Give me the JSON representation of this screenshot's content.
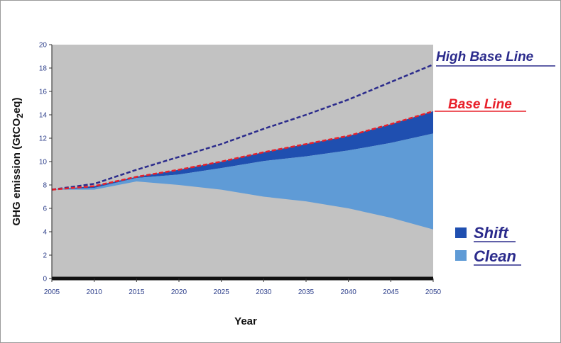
{
  "chart_data": {
    "type": "area",
    "xlabel": "Year",
    "ylabel_main": "GHG emission (GtCO",
    "ylabel_sub": "2",
    "ylabel_tail": "eq)",
    "xlim": [
      2005,
      2050
    ],
    "ylim": [
      0,
      20
    ],
    "x_ticks": [
      "2005",
      "2010",
      "2015",
      "2020",
      "2025",
      "2030",
      "2035",
      "2040",
      "2045",
      "2050"
    ],
    "y_ticks": [
      "0",
      "2",
      "4",
      "6",
      "8",
      "10",
      "12",
      "14",
      "16",
      "18",
      "20"
    ],
    "x": [
      2005,
      2010,
      2015,
      2020,
      2025,
      2030,
      2035,
      2040,
      2045,
      2050
    ],
    "series": [
      {
        "name": "High Base Line",
        "kind": "dashed-line",
        "color": "#2b2b8c",
        "values": [
          7.6,
          8.1,
          9.3,
          10.4,
          11.5,
          12.8,
          14.0,
          15.3,
          16.8,
          18.3
        ]
      },
      {
        "name": "Base Line",
        "kind": "dashed-line",
        "color": "#e8202a",
        "values": [
          7.6,
          7.9,
          8.7,
          9.3,
          10.0,
          10.8,
          11.5,
          12.2,
          13.2,
          14.3
        ]
      },
      {
        "name": "Shift",
        "kind": "area-band",
        "color": "#1f4fb0",
        "upper": [
          7.6,
          7.9,
          8.7,
          9.3,
          10.0,
          10.8,
          11.5,
          12.2,
          13.2,
          14.3
        ],
        "lower": [
          7.6,
          7.75,
          8.6,
          8.9,
          9.45,
          10.05,
          10.45,
          10.95,
          11.6,
          12.4
        ]
      },
      {
        "name": "Clean",
        "kind": "area-band",
        "color": "#5f9bd6",
        "upper": [
          7.6,
          7.75,
          8.6,
          8.9,
          9.45,
          10.05,
          10.45,
          10.95,
          11.6,
          12.4
        ],
        "lower": [
          7.6,
          7.6,
          8.3,
          8.0,
          7.6,
          7.0,
          6.6,
          6.0,
          5.2,
          4.2
        ]
      }
    ],
    "plot_background": "#c2c2c2",
    "line_labels": [
      {
        "text": "High Base Line",
        "color": "#2b2b8c"
      },
      {
        "text": "Base Line",
        "color": "#e8202a"
      }
    ],
    "legend": [
      {
        "label": "Shift",
        "color": "#1f4fb0"
      },
      {
        "label": "Clean",
        "color": "#5f9bd6"
      }
    ],
    "legend_position": "right",
    "grid": false
  }
}
